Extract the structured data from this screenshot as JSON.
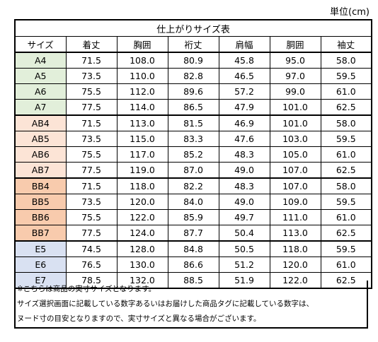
{
  "unit_label": "単位(cm)",
  "table": {
    "title": "仕上がりサイズ表",
    "columns": [
      "サイズ",
      "着丈",
      "胸囲",
      "裄丈",
      "肩幅",
      "胴囲",
      "袖丈"
    ],
    "groups": [
      {
        "color": "#e2efda",
        "rows": [
          [
            "A4",
            "71.5",
            "108.0",
            "80.9",
            "45.8",
            "95.0",
            "58.0"
          ],
          [
            "A5",
            "73.5",
            "110.0",
            "82.8",
            "46.5",
            "97.0",
            "59.5"
          ],
          [
            "A6",
            "75.5",
            "112.0",
            "89.6",
            "57.2",
            "99.0",
            "61.0"
          ],
          [
            "A7",
            "77.5",
            "114.0",
            "86.5",
            "47.9",
            "101.0",
            "62.5"
          ]
        ]
      },
      {
        "color": "#fce4d6",
        "rows": [
          [
            "AB4",
            "71.5",
            "113.0",
            "81.5",
            "46.9",
            "101.0",
            "58.0"
          ],
          [
            "AB5",
            "73.5",
            "115.0",
            "83.3",
            "47.6",
            "103.0",
            "59.5"
          ],
          [
            "AB6",
            "75.5",
            "117.0",
            "85.2",
            "48.3",
            "105.0",
            "61.0"
          ],
          [
            "AB7",
            "77.5",
            "119.0",
            "87.0",
            "49.0",
            "107.0",
            "62.5"
          ]
        ]
      },
      {
        "color": "#f8cbad",
        "rows": [
          [
            "BB4",
            "71.5",
            "118.0",
            "82.2",
            "48.3",
            "107.0",
            "58.0"
          ],
          [
            "BB5",
            "73.5",
            "120.0",
            "84.0",
            "49.0",
            "109.0",
            "59.5"
          ],
          [
            "BB6",
            "75.5",
            "122.0",
            "85.9",
            "49.7",
            "111.0",
            "61.0"
          ],
          [
            "BB7",
            "77.5",
            "124.0",
            "87.7",
            "50.4",
            "113.0",
            "62.5"
          ]
        ]
      },
      {
        "color": "#d9e1f2",
        "rows": [
          [
            "E5",
            "74.5",
            "128.0",
            "84.8",
            "50.5",
            "118.0",
            "59.5"
          ],
          [
            "E6",
            "76.5",
            "130.0",
            "86.6",
            "51.2",
            "120.0",
            "61.0"
          ],
          [
            "E7",
            "78.5",
            "132.0",
            "88.5",
            "51.9",
            "122.0",
            "62.5"
          ]
        ]
      }
    ]
  },
  "notes": [
    "※こちらは商品の実寸サイズとなります。",
    "サイズ選択画面に記載している数字あるいはお届けした商品タグに記載している数字は、",
    "ヌード寸の目安となりますので、実寸サイズと異なる場合がございます。"
  ]
}
